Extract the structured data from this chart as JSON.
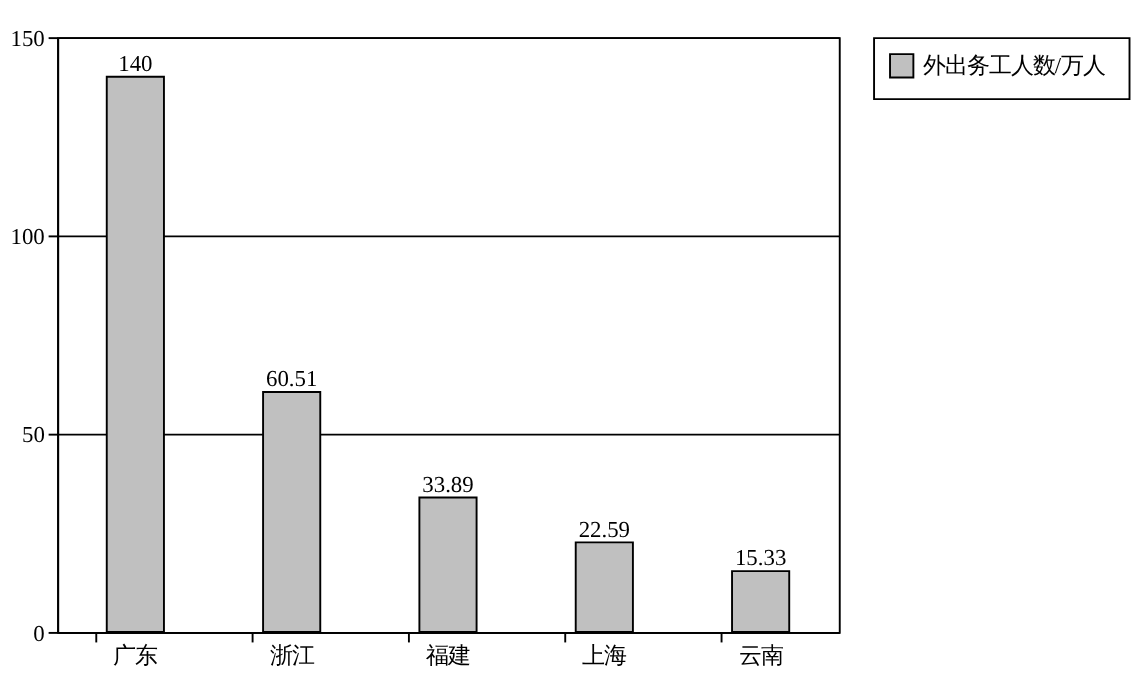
{
  "chart_data": {
    "type": "bar",
    "categories": [
      "广东",
      "浙江",
      "福建",
      "上海",
      "云南"
    ],
    "series": [
      {
        "name": "外出务工人数/万人",
        "color": "#c0c0c0",
        "values": [
          140,
          60.51,
          33.89,
          22.59,
          15.33
        ]
      }
    ],
    "ylim": [
      0,
      150
    ],
    "yticks": [
      0,
      50,
      100,
      150
    ],
    "grid": "y",
    "data_labels": true,
    "legend": "top right"
  }
}
